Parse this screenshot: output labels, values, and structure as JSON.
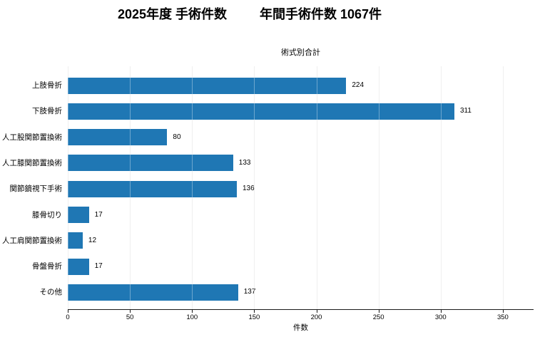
{
  "page": {
    "background": "#ffffff"
  },
  "header": {
    "title_left": "2025年度 手術件数",
    "title_right": "年間手術件数 1067件"
  },
  "chart_data": {
    "type": "bar",
    "orientation": "horizontal",
    "title": "術式別合計",
    "xlabel": "件数",
    "categories": [
      "上肢骨折",
      "下肢骨折",
      "人工股関節置換術",
      "人工膝関節置換術",
      "関節鏡視下手術",
      "膝骨切り",
      "人工肩関節置換術",
      "骨盤骨折",
      "その他"
    ],
    "values": [
      224,
      311,
      80,
      133,
      136,
      17,
      12,
      17,
      137
    ],
    "x_ticks": [
      0,
      50,
      100,
      150,
      200,
      250,
      300,
      350
    ],
    "xlim": [
      0,
      375
    ],
    "grid": "vertical",
    "legend": "none",
    "bar_color": "#1f77b4",
    "gridline_color": "#e6e6e6",
    "axis_color": "#1a1a1a",
    "text_color": "#000000"
  }
}
